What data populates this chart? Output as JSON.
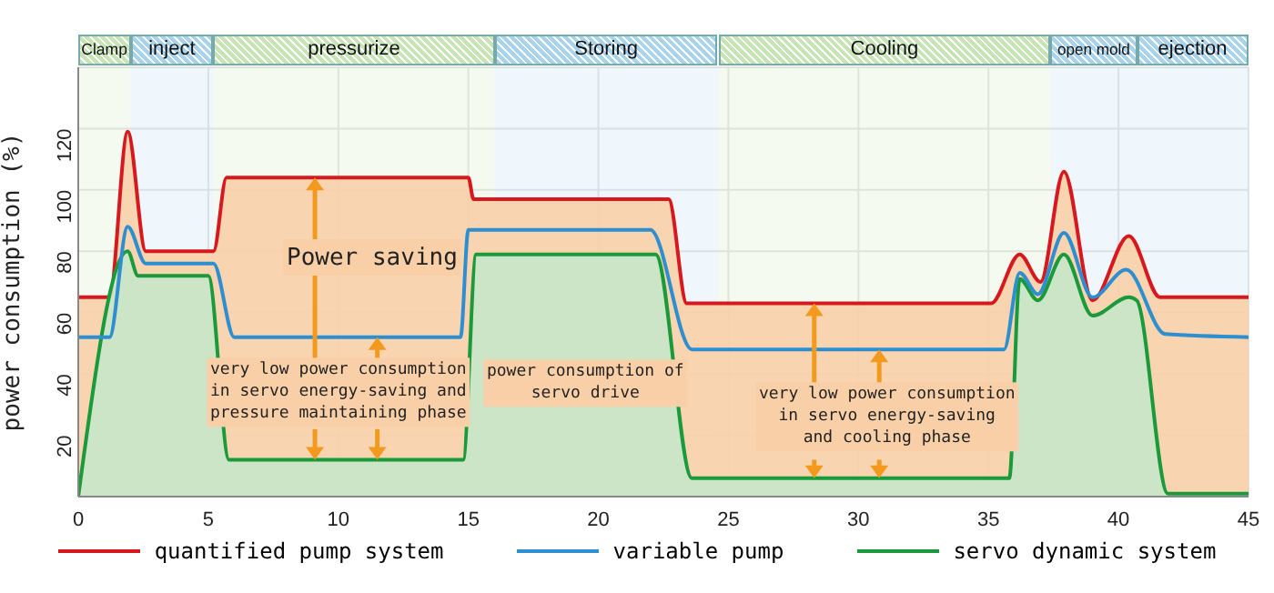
{
  "chart_data": {
    "type": "area",
    "ylabel": "power consumption (%)",
    "xlim": [
      0,
      45
    ],
    "xticks": [
      0,
      5,
      10,
      15,
      20,
      25,
      30,
      35,
      40,
      45
    ],
    "ylim": [
      0,
      140
    ],
    "yticks": [
      20,
      40,
      60,
      80,
      100,
      120
    ],
    "grid": true,
    "legend": "bottom",
    "series": [
      {
        "name": "quantified pump system",
        "color": "#d7191f",
        "x": [
          0,
          1.2,
          1.9,
          2.6,
          5.2,
          5.7,
          15.0,
          15.2,
          22.7,
          23.4,
          35.1,
          36.2,
          37.0,
          37.9,
          39.0,
          40.4,
          41.6,
          45
        ],
        "values": [
          65,
          65,
          119,
          80,
          80,
          104,
          104,
          97,
          97,
          63,
          63,
          79,
          70,
          106,
          64,
          85,
          65,
          65
        ]
      },
      {
        "name": "variable pump",
        "type": "line",
        "color": "#2e8fd0",
        "x": [
          0,
          1.2,
          1.9,
          2.6,
          5.2,
          6.0,
          14.7,
          15.0,
          22.0,
          23.6,
          35.6,
          36.2,
          36.9,
          37.9,
          39.0,
          40.3,
          41.8,
          45
        ],
        "values": [
          52,
          52,
          88,
          76,
          76,
          52,
          52,
          87,
          87,
          48,
          48,
          73,
          66,
          86,
          65,
          74,
          53,
          52
        ]
      },
      {
        "name": "servo dynamic system",
        "color": "#1a9a3a",
        "x": [
          0,
          1.9,
          2.3,
          5.0,
          5.8,
          14.8,
          15.3,
          22.2,
          23.6,
          35.8,
          36.2,
          36.9,
          37.9,
          39.0,
          40.4,
          40.7,
          41.9,
          45
        ],
        "values": [
          0,
          80,
          72,
          72,
          12,
          12,
          79,
          79,
          6,
          6,
          71,
          64,
          79,
          59,
          65,
          64,
          1,
          1
        ]
      }
    ],
    "bands": [
      {
        "axis": "x",
        "from": 0,
        "to": 2,
        "label": "Clamp",
        "color": "#c6e4b4"
      },
      {
        "axis": "x",
        "from": 2,
        "to": 5.2,
        "label": "inject",
        "color": "#a8d3ee"
      },
      {
        "axis": "x",
        "from": 5.2,
        "to": 16,
        "label": "pressurize",
        "color": "#c6e4b4"
      },
      {
        "axis": "x",
        "from": 16,
        "to": 24.6,
        "label": "Storing",
        "color": "#a8d3ee"
      },
      {
        "axis": "x",
        "from": 24.6,
        "to": 37.4,
        "label": "Cooling",
        "color": "#c6e4b4"
      },
      {
        "axis": "x",
        "from": 37.4,
        "to": 40.7,
        "label": "open mold",
        "color": "#a8d3ee"
      },
      {
        "axis": "x",
        "from": 40.7,
        "to": 45,
        "label": "ejection",
        "color": "#a8d3ee"
      }
    ],
    "annotations": [
      "Power saving",
      "very low power consumption\nin servo energy-saving and\npressure maintaining phase",
      "power consumption of\nservo drive",
      "very low power consumption\nin servo energy-saving\nand cooling phase"
    ]
  }
}
